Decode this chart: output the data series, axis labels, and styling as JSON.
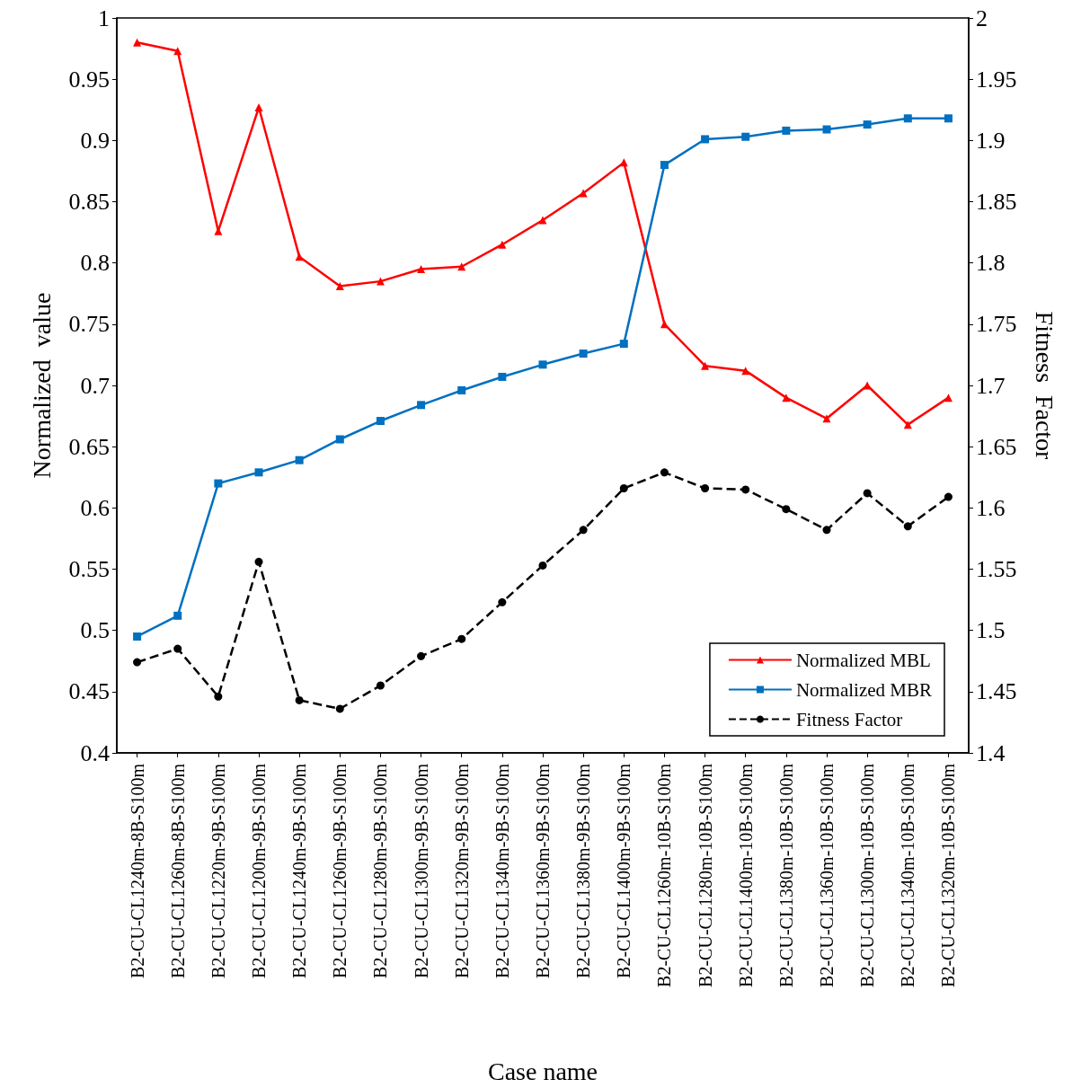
{
  "chart_data": {
    "type": "line",
    "xlabel": "Case name",
    "ylabel": "Normalized  value",
    "y2label": "Fitness  Factor",
    "categories": [
      "B2-CU-CL1240m-8B-S100m",
      "B2-CU-CL1260m-8B-S100m",
      "B2-CU-CL1220m-9B-S100m",
      "B2-CU-CL1200m-9B-S100m",
      "B2-CU-CL1240m-9B-S100m",
      "B2-CU-CL1260m-9B-S100m",
      "B2-CU-CL1280m-9B-S100m",
      "B2-CU-CL1300m-9B-S100m",
      "B2-CU-CL1320m-9B-S100m",
      "B2-CU-CL1340m-9B-S100m",
      "B2-CU-CL1360m-9B-S100m",
      "B2-CU-CL1380m-9B-S100m",
      "B2-CU-CL1400m-9B-S100m",
      "B2-CU-CL1260m-10B-S100m",
      "B2-CU-CL1280m-10B-S100m",
      "B2-CU-CL1400m-10B-S100m",
      "B2-CU-CL1380m-10B-S100m",
      "B2-CU-CL1360m-10B-S100m",
      "B2-CU-CL1300m-10B-S100m",
      "B2-CU-CL1340m-10B-S100m",
      "B2-CU-CL1320m-10B-S100m"
    ],
    "series": [
      {
        "name": "Normalized MBL",
        "color": "#ff0000",
        "marker": "triangle",
        "line_style": "solid",
        "values": [
          0.98,
          0.973,
          0.826,
          0.927,
          0.805,
          0.781,
          0.785,
          0.795,
          0.797,
          0.815,
          0.835,
          0.857,
          0.882,
          0.75,
          0.716,
          0.712,
          0.69,
          0.673,
          0.7,
          0.668,
          0.69
        ]
      },
      {
        "name": "Normalized MBR",
        "color": "#0070c0",
        "marker": "square",
        "line_style": "solid",
        "values": [
          0.495,
          0.512,
          0.62,
          0.629,
          0.639,
          0.656,
          0.671,
          0.684,
          0.696,
          0.707,
          0.717,
          0.726,
          0.734,
          0.88,
          0.901,
          0.903,
          0.908,
          0.909,
          0.913,
          0.918,
          0.918
        ]
      },
      {
        "name": "Fitness Factor",
        "color": "#000000",
        "marker": "circle",
        "line_style": "dashed",
        "axis": "y2",
        "values": [
          1.474,
          1.485,
          1.446,
          1.556,
          1.443,
          1.436,
          1.455,
          1.479,
          1.493,
          1.523,
          1.553,
          1.582,
          1.616,
          1.629,
          1.616,
          1.615,
          1.599,
          1.582,
          1.612,
          1.585,
          1.609
        ]
      }
    ],
    "ylim": [
      0.4,
      1
    ],
    "yticks": [
      0.4,
      0.45,
      0.5,
      0.55,
      0.6,
      0.65,
      0.7,
      0.75,
      0.8,
      0.85,
      0.9,
      0.95,
      1
    ],
    "y2lim": [
      1.4,
      2
    ],
    "y2ticks": [
      1.4,
      1.45,
      1.5,
      1.55,
      1.6,
      1.65,
      1.7,
      1.75,
      1.8,
      1.85,
      1.9,
      1.95,
      2
    ],
    "grid": false,
    "legend": "bottom right"
  }
}
